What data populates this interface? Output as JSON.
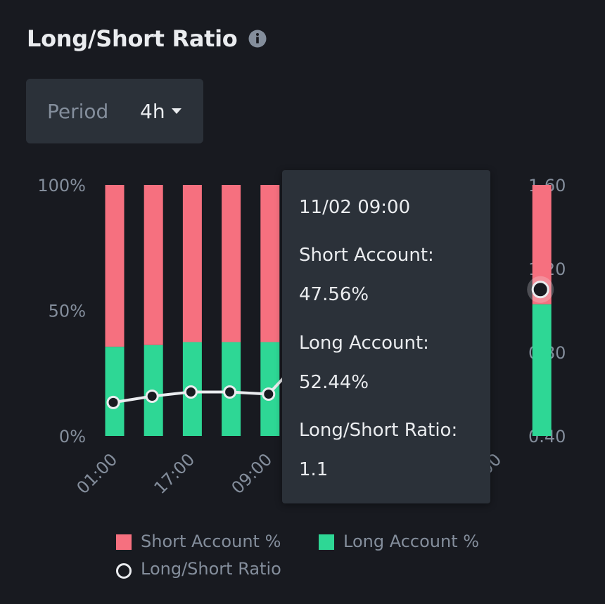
{
  "header": {
    "title": "Long/Short Ratio",
    "info_icon": "info-circle-icon"
  },
  "period": {
    "label": "Period",
    "value": "4h",
    "caret_icon": "caret-down-icon"
  },
  "colors": {
    "short": "#f6707f",
    "long": "#2ed795",
    "ratio_line": "#eaecef",
    "axis_text": "#848e9c",
    "background": "#181a20"
  },
  "chart_data": {
    "type": "bar",
    "stacked": true,
    "left_axis": {
      "ticks": [
        "100%",
        "50%",
        "0%"
      ],
      "ylim": [
        0,
        100
      ]
    },
    "right_axis": {
      "ticks": [
        "1.60",
        "1.20",
        "0.80",
        "0.40"
      ],
      "ylim": [
        0.4,
        1.6
      ]
    },
    "x_tick_labels": [
      "01:00",
      "17:00",
      "09:00",
      "00"
    ],
    "series": [
      {
        "name": "Long Account %",
        "values": [
          35.5,
          36.2,
          37.4,
          37.4,
          37.4,
          null,
          null,
          null,
          null,
          null,
          null,
          52.44
        ]
      },
      {
        "name": "Short Account %",
        "values": [
          64.5,
          63.8,
          62.6,
          62.6,
          62.6,
          null,
          null,
          null,
          null,
          null,
          null,
          47.56
        ]
      },
      {
        "name": "Long/Short Ratio",
        "type": "line",
        "axis": "right",
        "values": [
          0.56,
          0.59,
          0.61,
          0.61,
          0.6,
          null,
          null,
          null,
          null,
          null,
          null,
          1.1
        ]
      }
    ],
    "tooltip": {
      "date": "11/02 09:00",
      "short_label": "Short Account:",
      "short_value": "47.56%",
      "long_label": "Long Account:",
      "long_value": "52.44%",
      "ratio_label": "Long/Short Ratio:",
      "ratio_value": "1.1"
    },
    "legend": [
      "Short Account %",
      "Long Account %",
      "Long/Short Ratio"
    ]
  }
}
